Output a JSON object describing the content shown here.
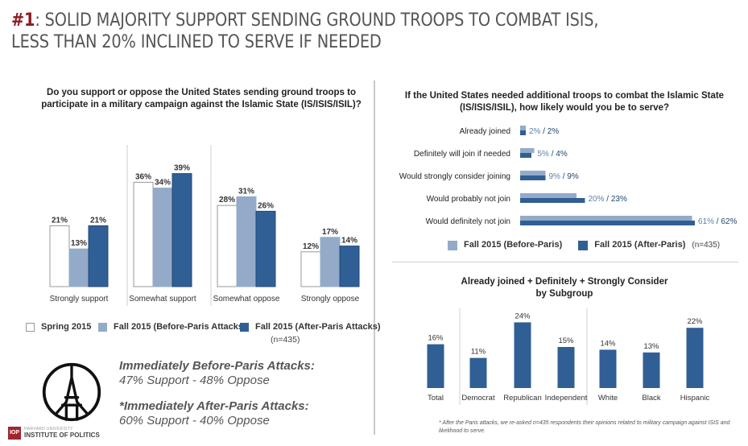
{
  "header": {
    "number": "#1",
    "title_line1": ": SOLID MAJORITY SUPPORT SENDING GROUND TROOPS TO COMBAT ISIS,",
    "title_line2": "LESS THAN 20% INCLINED TO SERVE IF NEEDED"
  },
  "colors": {
    "spring": "#ffffff",
    "before": "#93abc9",
    "after": "#2f5f95",
    "accent": "#8b1c23",
    "outline": "#888888"
  },
  "left_panel": {
    "question": "Do you support or oppose the United States sending ground troops to participate in a military campaign against the Islamic State (IS/ISIS/ISIL)?",
    "legend": {
      "spring": "Spring 2015",
      "before": "Fall 2015 (Before-Paris Attacks)",
      "after": "Fall 2015 (After-Paris Attacks)",
      "n": "(n=435)"
    },
    "callouts": {
      "before_heading": "Immediately Before-Paris Attacks:",
      "before_values": "47% Support - 48% Oppose",
      "after_heading": "*Immediately After-Paris Attacks:",
      "after_values": "60% Support - 40% Oppose"
    },
    "logo": {
      "abbr": "IOP",
      "university": "HARVARD UNIVERSITY",
      "name": "INSTITUTE OF POLITICS"
    }
  },
  "right_panel": {
    "question": "If the United States needed additional troops to combat the Islamic State (IS/ISIS/ISIL), how likely would you be to serve?",
    "legend": {
      "before": "Fall 2015 (Before-Paris)",
      "after": "Fall 2015 (After-Paris)",
      "n": "(n=435)"
    },
    "subgroup_title_line1": "Already joined + Definitely + Strongly Consider",
    "subgroup_title_line2": "by Subgroup",
    "footnote": "* After the Paris attacks, we re-asked n=435 respondents their opinions related to military campaign against ISIS and likelihood to serve."
  },
  "chart_data": [
    {
      "type": "bar",
      "title": "Do you support or oppose the United States sending ground troops to participate in a military campaign against the Islamic State (IS/ISIS/ISIL)?",
      "categories": [
        "Strongly support",
        "Somewhat support",
        "Somewhat oppose",
        "Strongly oppose"
      ],
      "series": [
        {
          "name": "Spring 2015",
          "values": [
            21,
            36,
            28,
            12
          ]
        },
        {
          "name": "Fall 2015 (Before-Paris Attacks)",
          "values": [
            13,
            34,
            31,
            17
          ]
        },
        {
          "name": "Fall 2015 (After-Paris Attacks)",
          "values": [
            21,
            39,
            26,
            14
          ]
        }
      ],
      "unit": "%",
      "ylim": [
        0,
        40
      ],
      "legend": "bottom",
      "grid": false
    },
    {
      "type": "bar",
      "orientation": "horizontal",
      "title": "If the United States needed additional troops to combat the Islamic State (IS/ISIS/ISIL), how likely would you be to serve?",
      "categories": [
        "Already joined",
        "Definitely will join if needed",
        "Would strongly consider joining",
        "Would probably not join",
        "Would definitely not join"
      ],
      "series": [
        {
          "name": "Fall 2015 (Before-Paris)",
          "values": [
            2,
            5,
            9,
            20,
            61
          ]
        },
        {
          "name": "Fall 2015 (After-Paris)",
          "values": [
            2,
            4,
            9,
            23,
            62
          ]
        }
      ],
      "unit": "%",
      "xlim": [
        0,
        65
      ],
      "legend": "bottom",
      "grid": false
    },
    {
      "type": "bar",
      "title": "Already joined + Definitely + Strongly Consider by Subgroup",
      "categories": [
        "Total",
        "Democrat",
        "Republican",
        "Independent",
        "White",
        "Black",
        "Hispanic"
      ],
      "values": [
        16,
        11,
        24,
        15,
        14,
        13,
        22
      ],
      "unit": "%",
      "ylim": [
        0,
        25
      ],
      "grid": false
    }
  ]
}
